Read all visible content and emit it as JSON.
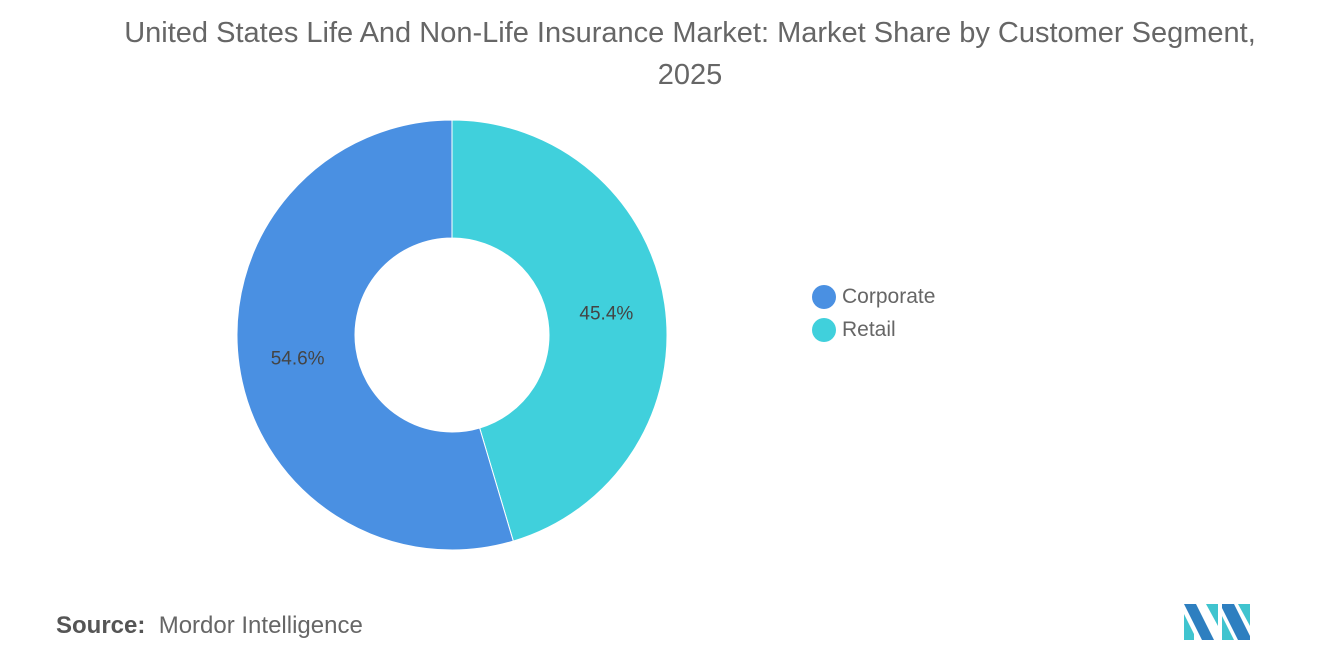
{
  "chart_data": {
    "type": "pie",
    "title": "United States Life And Non-Life Insurance Market: Market Share by Customer Segment, 2025",
    "donut": true,
    "legend_position": "right",
    "slices": [
      {
        "name": "Retail",
        "value": 45.4,
        "label": "45.4%",
        "color": "#40d0dc"
      },
      {
        "name": "Corporate",
        "value": 54.6,
        "label": "54.6%",
        "color": "#4a90e2"
      }
    ],
    "legend": [
      {
        "name": "Corporate",
        "color": "#4a90e2"
      },
      {
        "name": "Retail",
        "color": "#40d0dc"
      }
    ]
  },
  "source": {
    "label": "Source:",
    "text": "Mordor Intelligence"
  },
  "logo": "Mordor Intelligence logo"
}
